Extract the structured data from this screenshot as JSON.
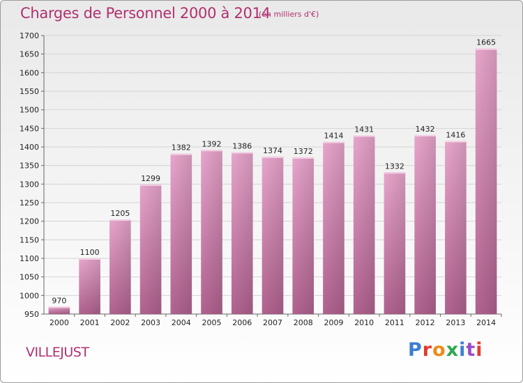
{
  "chart_data": {
    "type": "bar",
    "title": "Charges de Personnel 2000 à 2014",
    "subtitle": "(en milliers d'€)",
    "categories": [
      "2000",
      "2001",
      "2002",
      "2003",
      "2004",
      "2005",
      "2006",
      "2007",
      "2008",
      "2009",
      "2010",
      "2011",
      "2012",
      "2013",
      "2014"
    ],
    "values": [
      970,
      1100,
      1205,
      1299,
      1382,
      1392,
      1386,
      1374,
      1372,
      1414,
      1431,
      1332,
      1432,
      1416,
      1665
    ],
    "ylim": [
      950,
      1700
    ],
    "yticks": [
      950,
      1000,
      1050,
      1100,
      1150,
      1200,
      1250,
      1300,
      1350,
      1400,
      1450,
      1500,
      1550,
      1600,
      1650,
      1700
    ],
    "grid": true,
    "bar_color": "#c66a9c",
    "title_color": "#b0306f"
  },
  "footer": {
    "city": "VILLEJUST",
    "logo_text": "Proxiti",
    "logo_colors": [
      "#3b7fd1",
      "#e23b2e",
      "#f08a1a",
      "#2fa84f",
      "#3b7fd1",
      "#9b4dc9",
      "#e23b2e"
    ]
  }
}
